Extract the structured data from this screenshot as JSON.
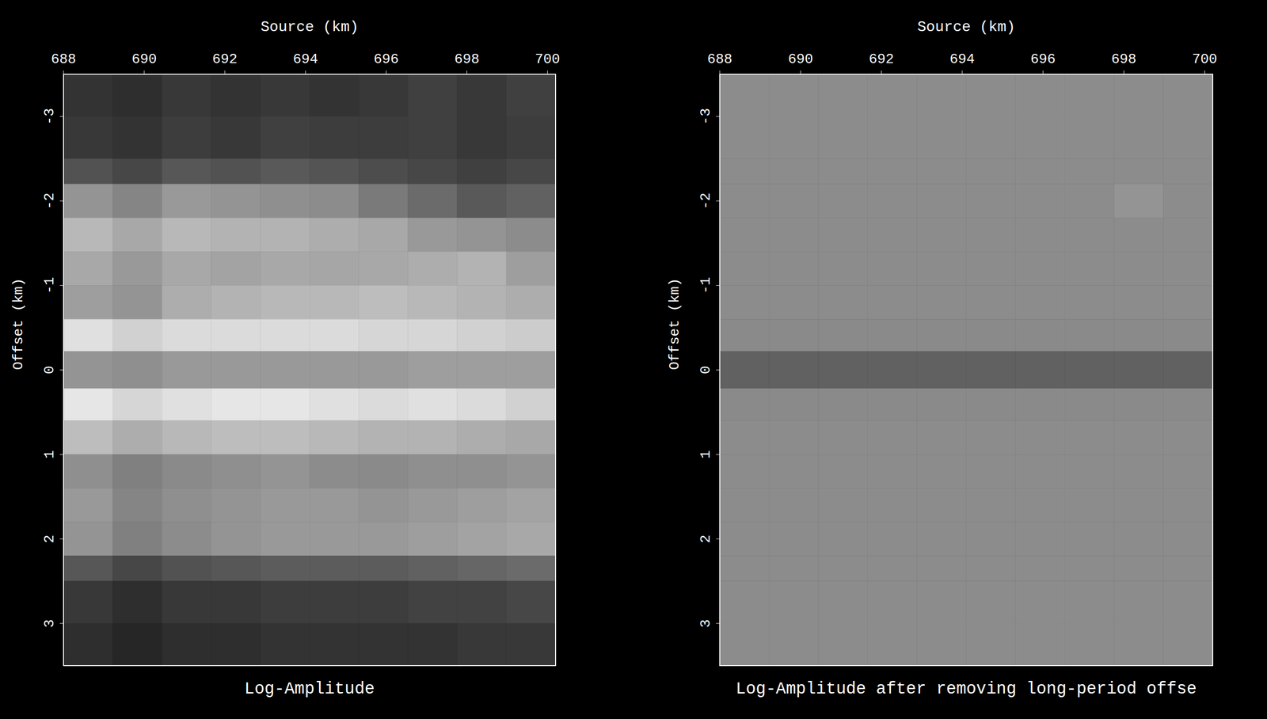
{
  "chart_data": [
    {
      "type": "heatmap",
      "title": "Log-Amplitude",
      "x_label": "Source (km)",
      "y_label": "Offset (km)",
      "xlim": [
        688,
        700.2
      ],
      "xticks": [
        688,
        690,
        692,
        694,
        696,
        698,
        700
      ],
      "ylim": [
        -3.5,
        3.5
      ],
      "yticks": [
        -3,
        -2,
        -1,
        0,
        1,
        2,
        3
      ],
      "x_edges": [
        688,
        689.22,
        690.44,
        691.66,
        692.88,
        694.1,
        695.32,
        696.54,
        697.76,
        698.98,
        700.2
      ],
      "y_edges": [
        -3.5,
        -3,
        -2.5,
        -2.2,
        -1.8,
        -1.4,
        -1,
        -0.6,
        -0.22,
        0.22,
        0.6,
        1,
        1.4,
        1.8,
        2.2,
        2.5,
        3,
        3.5
      ],
      "cells": [
        [
          0.2,
          0.18,
          0.22,
          0.2,
          0.22,
          0.2,
          0.22,
          0.25,
          0.22,
          0.25
        ],
        [
          0.22,
          0.2,
          0.24,
          0.22,
          0.25,
          0.24,
          0.24,
          0.25,
          0.22,
          0.24
        ],
        [
          0.32,
          0.28,
          0.34,
          0.32,
          0.35,
          0.33,
          0.3,
          0.28,
          0.25,
          0.28
        ],
        [
          0.58,
          0.52,
          0.6,
          0.58,
          0.56,
          0.55,
          0.48,
          0.42,
          0.35,
          0.38
        ],
        [
          0.72,
          0.66,
          0.72,
          0.7,
          0.7,
          0.68,
          0.66,
          0.6,
          0.58,
          0.55
        ],
        [
          0.66,
          0.6,
          0.66,
          0.64,
          0.66,
          0.65,
          0.66,
          0.68,
          0.7,
          0.62
        ],
        [
          0.62,
          0.58,
          0.68,
          0.7,
          0.72,
          0.72,
          0.74,
          0.72,
          0.7,
          0.68
        ],
        [
          0.88,
          0.82,
          0.86,
          0.86,
          0.86,
          0.86,
          0.84,
          0.84,
          0.82,
          0.8
        ],
        [
          0.58,
          0.56,
          0.6,
          0.6,
          0.6,
          0.6,
          0.6,
          0.62,
          0.62,
          0.62
        ],
        [
          0.9,
          0.84,
          0.88,
          0.9,
          0.9,
          0.88,
          0.86,
          0.88,
          0.86,
          0.82
        ],
        [
          0.74,
          0.68,
          0.72,
          0.74,
          0.74,
          0.72,
          0.7,
          0.7,
          0.68,
          0.66
        ],
        [
          0.56,
          0.5,
          0.54,
          0.56,
          0.58,
          0.55,
          0.54,
          0.56,
          0.56,
          0.58
        ],
        [
          0.6,
          0.52,
          0.56,
          0.58,
          0.6,
          0.6,
          0.58,
          0.6,
          0.62,
          0.64
        ],
        [
          0.58,
          0.5,
          0.55,
          0.58,
          0.6,
          0.6,
          0.6,
          0.62,
          0.64,
          0.66
        ],
        [
          0.34,
          0.28,
          0.32,
          0.34,
          0.36,
          0.36,
          0.36,
          0.38,
          0.4,
          0.42
        ],
        [
          0.22,
          0.18,
          0.22,
          0.22,
          0.24,
          0.24,
          0.24,
          0.26,
          0.26,
          0.28
        ],
        [
          0.18,
          0.15,
          0.18,
          0.18,
          0.2,
          0.2,
          0.2,
          0.2,
          0.22,
          0.22
        ]
      ]
    },
    {
      "type": "heatmap",
      "title": "Log-Amplitude after removing long-period offse",
      "x_label": "Source (km)",
      "y_label": "Offset (km)",
      "xlim": [
        688,
        700.2
      ],
      "xticks": [
        688,
        690,
        692,
        694,
        696,
        698,
        700
      ],
      "ylim": [
        -3.5,
        3.5
      ],
      "yticks": [
        -3,
        -2,
        -1,
        0,
        1,
        2,
        3
      ],
      "x_edges": [
        688,
        689.22,
        690.44,
        691.66,
        692.88,
        694.1,
        695.32,
        696.54,
        697.76,
        698.98,
        700.2
      ],
      "y_edges": [
        -3.5,
        -3,
        -2.5,
        -2.2,
        -1.8,
        -1.4,
        -1,
        -0.6,
        -0.22,
        0.22,
        0.6,
        1,
        1.4,
        1.8,
        2.2,
        2.5,
        3,
        3.5
      ],
      "cells": [
        [
          0.55,
          0.55,
          0.55,
          0.55,
          0.55,
          0.55,
          0.55,
          0.55,
          0.55,
          0.55
        ],
        [
          0.55,
          0.55,
          0.55,
          0.55,
          0.55,
          0.55,
          0.55,
          0.55,
          0.55,
          0.55
        ],
        [
          0.55,
          0.55,
          0.55,
          0.55,
          0.55,
          0.55,
          0.55,
          0.55,
          0.55,
          0.55
        ],
        [
          0.55,
          0.55,
          0.55,
          0.55,
          0.55,
          0.55,
          0.55,
          0.55,
          0.58,
          0.55
        ],
        [
          0.55,
          0.55,
          0.55,
          0.55,
          0.55,
          0.55,
          0.55,
          0.55,
          0.55,
          0.55
        ],
        [
          0.55,
          0.55,
          0.55,
          0.55,
          0.55,
          0.55,
          0.55,
          0.55,
          0.55,
          0.55
        ],
        [
          0.55,
          0.55,
          0.55,
          0.55,
          0.55,
          0.55,
          0.55,
          0.55,
          0.55,
          0.55
        ],
        [
          0.54,
          0.54,
          0.54,
          0.54,
          0.54,
          0.54,
          0.54,
          0.54,
          0.54,
          0.54
        ],
        [
          0.38,
          0.38,
          0.38,
          0.38,
          0.38,
          0.38,
          0.38,
          0.38,
          0.38,
          0.38
        ],
        [
          0.54,
          0.54,
          0.54,
          0.54,
          0.54,
          0.54,
          0.54,
          0.54,
          0.54,
          0.54
        ],
        [
          0.55,
          0.55,
          0.55,
          0.55,
          0.55,
          0.55,
          0.55,
          0.55,
          0.55,
          0.55
        ],
        [
          0.55,
          0.55,
          0.55,
          0.55,
          0.55,
          0.55,
          0.55,
          0.55,
          0.55,
          0.55
        ],
        [
          0.55,
          0.55,
          0.55,
          0.55,
          0.55,
          0.55,
          0.55,
          0.55,
          0.55,
          0.55
        ],
        [
          0.55,
          0.55,
          0.55,
          0.55,
          0.55,
          0.55,
          0.55,
          0.55,
          0.55,
          0.55
        ],
        [
          0.55,
          0.55,
          0.55,
          0.55,
          0.55,
          0.55,
          0.55,
          0.55,
          0.55,
          0.55
        ],
        [
          0.55,
          0.55,
          0.55,
          0.55,
          0.55,
          0.55,
          0.55,
          0.55,
          0.55,
          0.55
        ],
        [
          0.55,
          0.55,
          0.55,
          0.55,
          0.55,
          0.55,
          0.55,
          0.55,
          0.55,
          0.55
        ]
      ]
    }
  ]
}
